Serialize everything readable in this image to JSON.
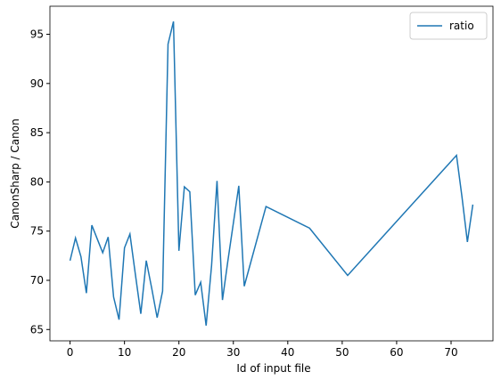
{
  "chart_data": {
    "type": "line",
    "x_label": "Id of input file",
    "y_label": "CanonSharp / Canon",
    "x": [
      0,
      1,
      2,
      3,
      4,
      5,
      6,
      7,
      8,
      9,
      10,
      11,
      12,
      13,
      14,
      15,
      16,
      17,
      18,
      19,
      20,
      21,
      22,
      23,
      24,
      25,
      26,
      27,
      28,
      29,
      31,
      32,
      36,
      44,
      51,
      71,
      72,
      73,
      74
    ],
    "series": [
      {
        "name": "ratio",
        "color": "#1f77b4",
        "values": [
          72.0,
          74.3,
          72.4,
          68.7,
          75.6,
          74.2,
          72.8,
          74.4,
          68.3,
          66.0,
          73.3,
          74.7,
          70.6,
          66.6,
          72.0,
          69.2,
          66.2,
          68.9,
          94.0,
          96.3,
          73.0,
          79.5,
          79.0,
          68.5,
          69.8,
          65.4,
          71.5,
          80.1,
          68.0,
          72.0,
          79.6,
          69.4,
          77.5,
          75.3,
          70.5,
          82.7,
          78.5,
          73.9,
          77.7
        ]
      }
    ],
    "xlim": [
      -3.7,
      77.7
    ],
    "ylim": [
      63.85,
      97.85
    ],
    "xticks": [
      0,
      10,
      20,
      30,
      40,
      50,
      60,
      70
    ],
    "yticks": [
      65,
      70,
      75,
      80,
      85,
      90,
      95
    ],
    "legend": "upper right"
  }
}
